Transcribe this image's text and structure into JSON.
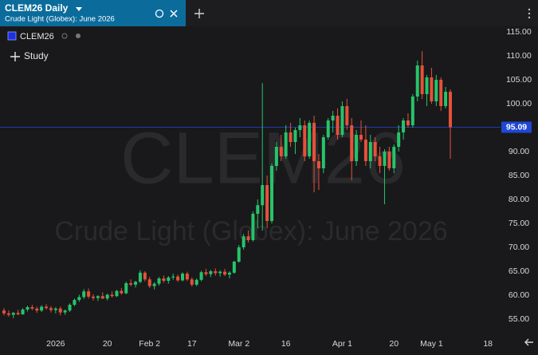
{
  "tab": {
    "title": "CLEM26 Daily",
    "subtitle": "Crude Light (Globex): June 2026"
  },
  "legend_symbol": "CLEM26",
  "study_button": "Study",
  "watermark": {
    "symbol": "CLEM26",
    "description": "Crude Light (Globex): June 2026"
  },
  "chart_data": {
    "type": "candlestick",
    "up_color": "#26c46a",
    "down_color": "#e5513a",
    "last_price": 95.09,
    "last_price_color": "#1f47d6",
    "ylim": [
      51.67,
      116.67
    ],
    "yticks": [
      {
        "value": 55,
        "label": "55.00"
      },
      {
        "value": 60,
        "label": "60.00"
      },
      {
        "value": 65,
        "label": "65.00"
      },
      {
        "value": 70,
        "label": "70.00"
      },
      {
        "value": 75,
        "label": "75.00"
      },
      {
        "value": 80,
        "label": "80.00"
      },
      {
        "value": 85,
        "label": "85.00"
      },
      {
        "value": 90,
        "label": "90.00"
      },
      {
        "value": 95,
        "label": "95.00"
      },
      {
        "value": 100,
        "label": "100.00"
      },
      {
        "value": 105,
        "label": "105.00"
      },
      {
        "value": 110,
        "label": "110.00"
      },
      {
        "value": 115,
        "label": "115.00"
      }
    ],
    "categories": [
      null,
      null,
      null,
      null,
      null,
      null,
      null,
      null,
      null,
      null,
      null,
      "2026",
      null,
      null,
      null,
      null,
      null,
      null,
      null,
      null,
      null,
      null,
      "20",
      null,
      null,
      null,
      null,
      null,
      null,
      null,
      null,
      "Feb 2",
      null,
      null,
      null,
      null,
      null,
      null,
      null,
      null,
      "17",
      null,
      null,
      null,
      null,
      null,
      null,
      null,
      null,
      null,
      "Mar 2",
      null,
      null,
      null,
      null,
      null,
      null,
      null,
      null,
      null,
      "16",
      null,
      null,
      null,
      null,
      null,
      null,
      null,
      null,
      null,
      null,
      null,
      "Apr 1",
      null,
      null,
      null,
      null,
      null,
      null,
      null,
      null,
      null,
      null,
      "20",
      null,
      null,
      null,
      null,
      null,
      null,
      null,
      "May 1",
      null,
      null,
      null,
      null,
      null,
      null,
      null,
      null,
      null,
      null,
      null,
      "18"
    ],
    "open": [
      56.8,
      56.2,
      55.9,
      56.3,
      56.0,
      57.0,
      57.5,
      57.2,
      56.8,
      57.6,
      57.3,
      56.9,
      57.2,
      56.4,
      56.8,
      58.0,
      59.0,
      59.6,
      60.8,
      59.7,
      59.4,
      59.8,
      59.3,
      60.1,
      59.8,
      60.9,
      60.4,
      62.5,
      62.2,
      62.8,
      64.7,
      63.3,
      61.9,
      62.4,
      63.5,
      63.0,
      63.7,
      63.9,
      63.1,
      64.5,
      63.3,
      62.2,
      63.2,
      64.8,
      64.4,
      65.0,
      64.6,
      64.9,
      64.3,
      64.7,
      67.0,
      70.0,
      72.3,
      71.5,
      77.0,
      78.8,
      83.0,
      75.5,
      87.0,
      91.0,
      89.0,
      94.0,
      92.0,
      94.5,
      95.5,
      89.0,
      96.0,
      88.0,
      86.5,
      93.0,
      96.5,
      97.5,
      93.5,
      99.5,
      95.5,
      88.0,
      93.5,
      92.5,
      88.0,
      92.0,
      89.0,
      87.0,
      90.0,
      86.5,
      91.0,
      94.0,
      96.5,
      95.5,
      101.5,
      108.0,
      102.0,
      105.5,
      100.5,
      105.0,
      99.5,
      102.5,
      null,
      null,
      null,
      null,
      null,
      null,
      null,
      null
    ],
    "high": [
      57.3,
      56.8,
      56.5,
      56.9,
      57.3,
      57.8,
      58.0,
      57.6,
      57.9,
      58.1,
      57.7,
      57.5,
      57.6,
      57.0,
      58.3,
      59.3,
      60.1,
      61.3,
      61.4,
      60.2,
      60.0,
      60.6,
      60.3,
      60.8,
      61.1,
      61.5,
      62.8,
      63.3,
      63.0,
      65.2,
      65.0,
      63.8,
      62.7,
      63.8,
      64.1,
      64.0,
      64.5,
      64.3,
      64.8,
      64.9,
      63.7,
      63.5,
      65.1,
      65.5,
      65.3,
      65.6,
      65.2,
      65.5,
      65.0,
      67.2,
      70.5,
      72.8,
      73.5,
      77.5,
      80.0,
      104.3,
      85.0,
      87.5,
      92.0,
      93.5,
      95.5,
      96.0,
      95.0,
      97.0,
      96.5,
      96.5,
      97.5,
      89.5,
      93.5,
      97.0,
      98.5,
      99.0,
      100.5,
      101.0,
      97.0,
      94.5,
      96.5,
      95.5,
      93.5,
      93.0,
      91.0,
      90.5,
      91.0,
      91.5,
      95.5,
      97.0,
      98.0,
      102.0,
      109.0,
      111.0,
      106.0,
      107.5,
      106.0,
      105.5,
      103.5,
      103.0,
      null,
      null,
      null,
      null,
      null,
      null,
      null,
      null
    ],
    "low": [
      55.8,
      55.5,
      55.2,
      55.8,
      55.9,
      56.6,
      56.9,
      56.3,
      56.5,
      57.0,
      56.4,
      56.2,
      55.8,
      55.9,
      56.5,
      57.7,
      58.6,
      59.2,
      59.3,
      58.9,
      58.8,
      59.2,
      58.9,
      59.5,
      59.6,
      60.1,
      60.2,
      61.9,
      61.6,
      62.5,
      62.9,
      61.5,
      61.2,
      62.0,
      62.6,
      62.4,
      63.2,
      62.8,
      62.9,
      63.0,
      61.8,
      61.9,
      62.9,
      64.0,
      63.8,
      64.1,
      63.9,
      64.0,
      63.5,
      64.5,
      66.8,
      69.5,
      71.0,
      71.2,
      74.0,
      73.5,
      74.0,
      75.0,
      86.0,
      88.0,
      88.5,
      91.0,
      89.5,
      93.0,
      88.0,
      88.5,
      81.5,
      82.0,
      85.5,
      92.5,
      94.0,
      92.5,
      93.0,
      94.5,
      84.0,
      87.0,
      92.0,
      87.0,
      86.5,
      88.0,
      85.5,
      79.0,
      86.0,
      85.5,
      90.0,
      92.5,
      95.0,
      95.0,
      100.5,
      101.0,
      99.5,
      100.0,
      99.5,
      98.5,
      99.0,
      88.5,
      null,
      null,
      null,
      null,
      null,
      null,
      null,
      null
    ],
    "close": [
      56.2,
      55.9,
      56.3,
      56.0,
      57.0,
      57.5,
      57.2,
      56.8,
      57.6,
      57.3,
      56.9,
      57.2,
      56.4,
      56.8,
      58.0,
      59.0,
      59.6,
      60.8,
      59.7,
      59.4,
      59.8,
      59.3,
      60.1,
      59.8,
      60.9,
      60.4,
      62.5,
      62.2,
      62.8,
      64.7,
      63.3,
      61.9,
      62.4,
      63.5,
      63.0,
      63.7,
      63.9,
      63.1,
      64.5,
      63.3,
      62.2,
      63.2,
      64.8,
      64.4,
      65.0,
      64.6,
      64.9,
      64.3,
      64.7,
      67.0,
      70.0,
      72.3,
      71.5,
      77.0,
      78.8,
      83.0,
      75.5,
      87.0,
      91.0,
      89.0,
      94.0,
      92.0,
      94.5,
      95.5,
      89.0,
      96.0,
      88.0,
      86.5,
      93.0,
      96.5,
      97.5,
      93.5,
      99.5,
      95.5,
      88.0,
      93.5,
      92.5,
      88.0,
      92.0,
      89.0,
      87.0,
      90.0,
      86.5,
      91.0,
      94.0,
      96.5,
      95.5,
      101.5,
      108.0,
      102.0,
      105.5,
      100.5,
      105.0,
      99.5,
      102.5,
      95.09,
      null,
      null,
      null,
      null,
      null,
      null,
      null,
      null
    ]
  }
}
